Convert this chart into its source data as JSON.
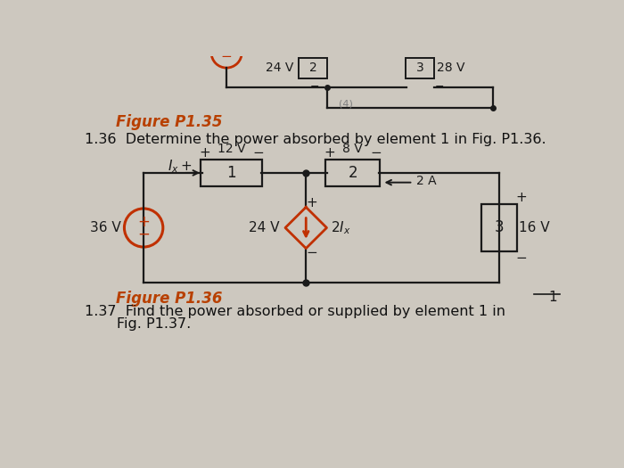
{
  "bg_color": "#cdc8bf",
  "title_fig135": "Figure P1.35",
  "title_fig136": "Figure P1.36",
  "problem136_text": "1.36  Determine the power absorbed by element 1 in Fig. P1.36.",
  "problem137_text_line1": "1.37  Find the power absorbed or supplied by element 1 in",
  "problem137_text_line2": "       Fig. P1.37.",
  "fig135_color": "#b84000",
  "fig136_color": "#b84000",
  "circuit_color": "#1a1a1a",
  "red_color": "#c03000",
  "text_color": "#111111"
}
